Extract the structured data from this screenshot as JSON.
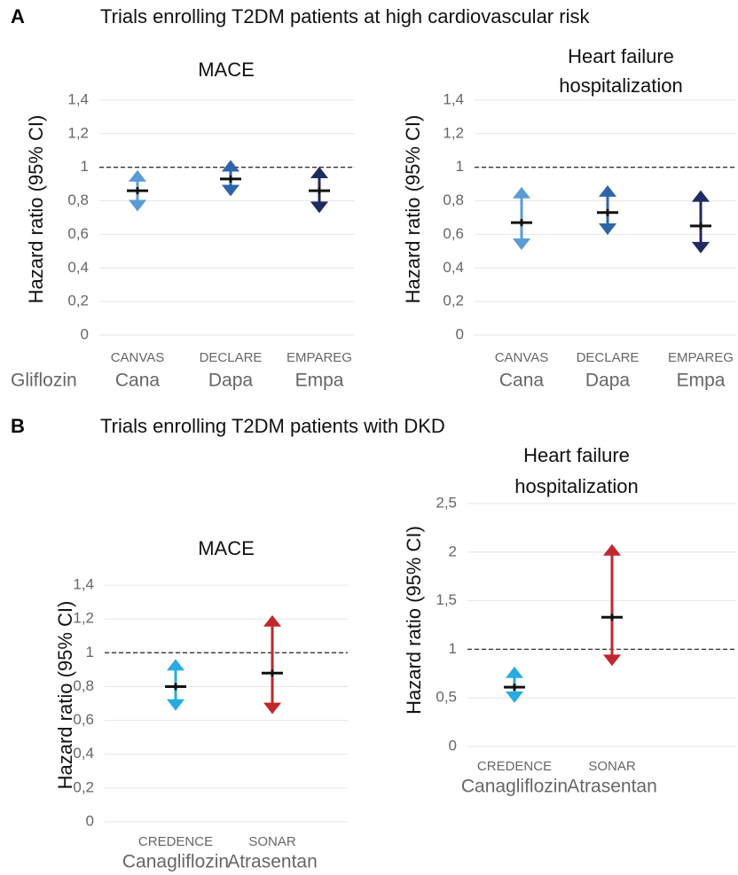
{
  "sections": [
    {
      "label": "A",
      "title": "Trials enrolling T2DM patients at high cardiovascular risk",
      "row_label": "Gliflozin"
    },
    {
      "label": "B",
      "title": "Trials enrolling T2DM patients with DKD"
    }
  ],
  "chart_data": [
    {
      "type": "forest",
      "title": [
        "MACE"
      ],
      "y_label": "Hazard ratio (95% CI)",
      "categories": [
        "CANVAS",
        "DECLARE",
        "EMPAREG"
      ],
      "drugs": [
        "Cana",
        "Dapa",
        "Empa"
      ],
      "values": [
        0.86,
        0.93,
        0.86
      ],
      "lower": [
        0.75,
        0.84,
        0.74
      ],
      "upper": [
        0.97,
        1.03,
        0.99
      ],
      "colors": [
        "#5b9bd5",
        "#2e64a8",
        "#1f2a5e"
      ],
      "ylim": [
        0,
        1.5
      ],
      "yticks": [
        0,
        {
          "value": 0.2,
          "label": "0,2"
        },
        {
          "value": 0.4,
          "label": "0,4"
        },
        {
          "value": 0.6,
          "label": "0,6"
        },
        {
          "value": 0.8,
          "label": "0,8"
        },
        1,
        {
          "value": 1.2,
          "label": "1,2"
        },
        {
          "value": 1.4,
          "label": "1,4"
        }
      ],
      "refline": 1,
      "grid": true
    },
    {
      "type": "forest",
      "title": [
        "Heart failure",
        "hospitalization"
      ],
      "y_label": "Hazard ratio (95% CI)",
      "categories": [
        "CANVAS",
        "DECLARE",
        "EMPAREG"
      ],
      "drugs": [
        "Cana",
        "Dapa",
        "Empa"
      ],
      "values": [
        0.67,
        0.73,
        0.65
      ],
      "lower": [
        0.52,
        0.61,
        0.5
      ],
      "upper": [
        0.87,
        0.88,
        0.85
      ],
      "colors": [
        "#5b9bd5",
        "#2e64a8",
        "#1f2a5e"
      ],
      "ylim": [
        0,
        1.5
      ],
      "yticks": [
        0,
        {
          "value": 0.2,
          "label": "0,2"
        },
        {
          "value": 0.4,
          "label": "0,4"
        },
        {
          "value": 0.6,
          "label": "0,6"
        },
        {
          "value": 0.8,
          "label": "0,8"
        },
        1,
        {
          "value": 1.2,
          "label": "1,2"
        },
        {
          "value": 1.4,
          "label": "1,4"
        }
      ],
      "refline": 1,
      "grid": true
    },
    {
      "type": "forest",
      "title": [
        "MACE"
      ],
      "y_label": "Hazard ratio (95% CI)",
      "categories": [
        "CREDENCE",
        "SONAR"
      ],
      "drugs": [
        "Canagliflozin",
        "Atrasentan"
      ],
      "values": [
        0.8,
        0.88
      ],
      "lower": [
        0.67,
        0.65
      ],
      "upper": [
        0.95,
        1.21
      ],
      "colors": [
        "#29abe2",
        "#c0282d"
      ],
      "ylim": [
        0,
        1.5
      ],
      "yticks": [
        0,
        {
          "value": 0.2,
          "label": "0,2"
        },
        {
          "value": 0.4,
          "label": "0,4"
        },
        {
          "value": 0.6,
          "label": "0,6"
        },
        {
          "value": 0.8,
          "label": "0,8"
        },
        1,
        {
          "value": 1.2,
          "label": "1,2"
        },
        {
          "value": 1.4,
          "label": "1,4"
        }
      ],
      "refline": 1,
      "grid": true
    },
    {
      "type": "forest",
      "title": [
        "Heart failure",
        "hospitalization"
      ],
      "y_label": "Hazard ratio (95% CI)",
      "categories": [
        "CREDENCE",
        "SONAR"
      ],
      "drugs": [
        "Canagliflozin",
        "Atrasentan"
      ],
      "values": [
        0.61,
        1.33
      ],
      "lower": [
        0.47,
        0.85
      ],
      "upper": [
        0.8,
        2.06
      ],
      "colors": [
        "#29abe2",
        "#c0282d"
      ],
      "ylim": [
        0,
        2.6
      ],
      "yticks": [
        0,
        {
          "value": 0.5,
          "label": "0,5"
        },
        1,
        {
          "value": 1.5,
          "label": "1,5"
        },
        2,
        {
          "value": 2.5,
          "label": "2,5"
        }
      ],
      "refline": 1,
      "grid": true
    }
  ]
}
